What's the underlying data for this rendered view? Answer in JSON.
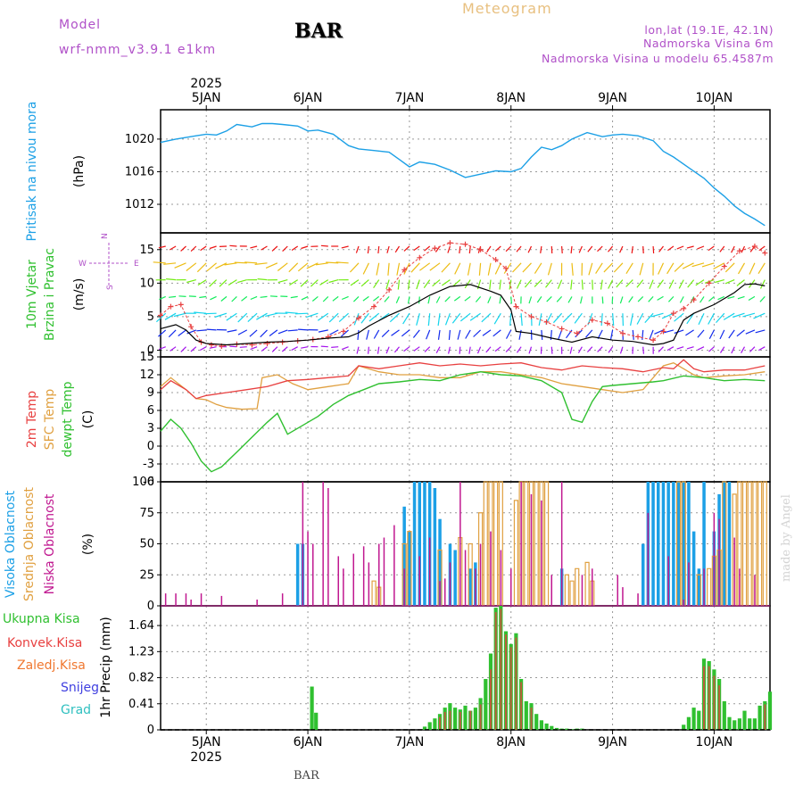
{
  "header": {
    "model_label": "Model",
    "model_name": "wrf-nmm_v3.9.1 e1km",
    "station": "BAR",
    "title": "Meteogram",
    "coords": "lon,lat (19.1E, 42.1N)",
    "elevation": "Nadmorska Visina 6m",
    "model_elevation": "Nadmorska Visina u modelu 65.4587m"
  },
  "footer": {
    "station": "BAR",
    "credit": "made by Angel"
  },
  "colors": {
    "pressure": "#1ca0e6",
    "temp2m": "#e84040",
    "sfc": "#e0a040",
    "dewpt": "#30c030",
    "high_cloud": "#1ca0e6",
    "mid_cloud": "#e0a040",
    "low_cloud": "#c01890",
    "precip_total": "#30c030",
    "precip_conv": "#e84040",
    "wind_speed": "#000000",
    "gust": "#e84040"
  },
  "chart_data": [
    {
      "type": "line",
      "id": "pressure",
      "ylabel_lines": [
        "Pritisak na nivou mora",
        "(hPa)"
      ],
      "ylim": [
        1008.5,
        1023.6
      ],
      "yticks": [
        1012,
        1016,
        1020
      ],
      "x_dates": [
        "5JAN",
        "6JAN",
        "7JAN",
        "8JAN",
        "9JAN",
        "10JAN"
      ],
      "year": "2025",
      "xlim": [
        -0.45,
        5.55
      ],
      "series": [
        {
          "x": [
            -0.45,
            -0.3,
            -0.1,
            0.0,
            0.1,
            0.2,
            0.3,
            0.45,
            0.55,
            0.65,
            0.75,
            0.9,
            1.0,
            1.1,
            1.25,
            1.4,
            1.5,
            1.65,
            1.8,
            1.9,
            2.0,
            2.1,
            2.25,
            2.4,
            2.55,
            2.7,
            2.85,
            3.0,
            3.1,
            3.2,
            3.3,
            3.4,
            3.5,
            3.6,
            3.75,
            3.9,
            4.0,
            4.1,
            4.25,
            4.4,
            4.5,
            4.6,
            4.75,
            4.9,
            5.0,
            5.1,
            5.2,
            5.3,
            5.4,
            5.5
          ],
          "y": [
            1019.6,
            1020.0,
            1020.4,
            1020.6,
            1020.5,
            1021.0,
            1021.8,
            1021.5,
            1021.9,
            1021.9,
            1021.8,
            1021.6,
            1021.0,
            1021.1,
            1020.6,
            1019.2,
            1018.8,
            1018.6,
            1018.4,
            1017.5,
            1016.6,
            1017.2,
            1016.9,
            1016.2,
            1015.3,
            1015.7,
            1016.1,
            1016.0,
            1016.4,
            1017.8,
            1019.0,
            1018.7,
            1019.2,
            1020.0,
            1020.8,
            1020.3,
            1020.5,
            1020.6,
            1020.4,
            1019.8,
            1018.5,
            1017.8,
            1016.5,
            1015.2,
            1014.0,
            1013.0,
            1011.8,
            1010.9,
            1010.2,
            1009.4
          ]
        }
      ]
    },
    {
      "type": "wind",
      "id": "wind",
      "ylabel_lines": [
        "10m Vjetar",
        "Brzina i Pravac",
        "(m/s)"
      ],
      "compass": {
        "north": "N",
        "west": "W",
        "east": "E",
        "south": "S"
      },
      "ylim": [
        -1,
        17.5
      ],
      "yticks": [
        0,
        5,
        10,
        15
      ],
      "xlim": [
        -0.45,
        5.55
      ],
      "series": [
        {
          "name": "wind speed",
          "x": [
            -0.45,
            -0.3,
            -0.2,
            -0.1,
            0.0,
            0.2,
            0.4,
            0.6,
            0.8,
            1.0,
            1.2,
            1.4,
            1.5,
            1.6,
            1.8,
            2.0,
            2.2,
            2.4,
            2.6,
            2.8,
            2.9,
            3.0,
            3.05,
            3.2,
            3.4,
            3.6,
            3.8,
            4.0,
            4.2,
            4.4,
            4.5,
            4.6,
            4.7,
            4.8,
            5.0,
            5.2,
            5.3,
            5.4,
            5.5
          ],
          "y": [
            3.2,
            3.8,
            3.0,
            1.5,
            1.0,
            0.8,
            1.0,
            1.2,
            1.3,
            1.5,
            1.8,
            2.0,
            2.6,
            3.6,
            5.2,
            6.5,
            8.2,
            9.5,
            9.8,
            8.8,
            8.2,
            6.0,
            2.8,
            2.5,
            1.8,
            1.2,
            2.0,
            1.5,
            1.3,
            0.8,
            1.0,
            1.5,
            4.5,
            5.5,
            6.8,
            8.6,
            9.8,
            9.9,
            9.6
          ]
        },
        {
          "name": "gust",
          "x": [
            -0.45,
            -0.35,
            -0.25,
            -0.15,
            -0.05,
            0.05,
            0.15,
            0.3,
            0.45,
            0.6,
            0.75,
            0.9,
            1.05,
            1.2,
            1.35,
            1.5,
            1.65,
            1.8,
            1.95,
            2.1,
            2.25,
            2.4,
            2.55,
            2.7,
            2.85,
            2.95,
            3.05,
            3.2,
            3.35,
            3.5,
            3.65,
            3.8,
            3.95,
            4.1,
            4.25,
            4.4,
            4.5,
            4.6,
            4.7,
            4.8,
            4.95,
            5.1,
            5.25,
            5.4,
            5.5
          ],
          "y": [
            5.2,
            6.5,
            6.8,
            3.5,
            1.2,
            0.8,
            0.6,
            0.9,
            0.8,
            1.0,
            1.2,
            1.4,
            1.6,
            2.0,
            2.8,
            4.8,
            6.5,
            9.0,
            12.0,
            13.8,
            15.2,
            16.0,
            15.8,
            15.0,
            13.5,
            12.2,
            6.5,
            5.0,
            4.2,
            3.2,
            2.5,
            4.5,
            4.0,
            2.5,
            2.0,
            1.5,
            2.8,
            5.5,
            6.2,
            7.5,
            10.0,
            12.5,
            14.8,
            15.5,
            14.5
          ]
        }
      ]
    },
    {
      "type": "line",
      "id": "temperature",
      "ylabel_lines": [
        "2m Temp",
        "SFC Temp",
        "dewpt Temp",
        "(C)"
      ],
      "ylim": [
        -6,
        15
      ],
      "yticks": [
        -6,
        -3,
        0,
        3,
        6,
        9,
        12,
        15
      ],
      "xlim": [
        -0.45,
        5.55
      ],
      "series": [
        {
          "name": "2m Temp",
          "x": [
            -0.45,
            -0.35,
            -0.2,
            -0.1,
            0.0,
            0.2,
            0.4,
            0.6,
            0.8,
            1.0,
            1.2,
            1.4,
            1.5,
            1.7,
            1.9,
            2.1,
            2.3,
            2.5,
            2.7,
            2.9,
            3.1,
            3.3,
            3.5,
            3.7,
            3.9,
            4.1,
            4.3,
            4.5,
            4.6,
            4.7,
            4.8,
            4.9,
            5.1,
            5.3,
            5.5
          ],
          "y": [
            9.5,
            11.0,
            9.5,
            8.0,
            8.5,
            9.0,
            9.5,
            10.0,
            11.0,
            11.2,
            11.5,
            11.8,
            13.5,
            13.0,
            13.5,
            14.0,
            13.5,
            13.8,
            13.5,
            13.8,
            14.0,
            13.2,
            12.8,
            13.5,
            13.2,
            13.0,
            12.5,
            13.2,
            13.0,
            14.5,
            13.0,
            12.5,
            12.8,
            12.8,
            13.5
          ]
        },
        {
          "name": "SFC Temp",
          "x": [
            -0.45,
            -0.35,
            -0.2,
            -0.1,
            0.0,
            0.1,
            0.2,
            0.35,
            0.5,
            0.55,
            0.7,
            0.85,
            1.0,
            1.2,
            1.4,
            1.5,
            1.7,
            1.9,
            2.1,
            2.3,
            2.5,
            2.7,
            2.9,
            3.1,
            3.3,
            3.5,
            3.7,
            3.9,
            4.1,
            4.3,
            4.5,
            4.6,
            4.7,
            4.8,
            4.9,
            5.1,
            5.3,
            5.5
          ],
          "y": [
            10.0,
            11.5,
            9.5,
            8.0,
            7.8,
            7.0,
            6.5,
            6.2,
            6.3,
            11.5,
            12.0,
            10.5,
            9.5,
            10.0,
            10.5,
            13.5,
            12.5,
            12.0,
            12.0,
            11.5,
            11.5,
            12.5,
            12.5,
            12.0,
            11.5,
            10.5,
            10.0,
            9.5,
            9.0,
            9.5,
            13.5,
            14.0,
            13.0,
            12.0,
            11.5,
            11.8,
            12.0,
            12.5
          ]
        },
        {
          "name": "dewpt Temp",
          "x": [
            -0.45,
            -0.35,
            -0.25,
            -0.15,
            -0.05,
            0.05,
            0.15,
            0.3,
            0.45,
            0.6,
            0.7,
            0.8,
            0.95,
            1.1,
            1.25,
            1.4,
            1.55,
            1.7,
            1.9,
            2.1,
            2.3,
            2.5,
            2.7,
            2.9,
            3.1,
            3.3,
            3.5,
            3.6,
            3.7,
            3.8,
            3.9,
            4.0,
            4.2,
            4.4,
            4.5,
            4.7,
            4.9,
            5.1,
            5.3,
            5.5
          ],
          "y": [
            2.5,
            4.5,
            3.0,
            0.5,
            -2.5,
            -4.3,
            -3.5,
            -1.0,
            1.5,
            4.0,
            5.5,
            2.0,
            3.5,
            5.0,
            7.0,
            8.5,
            9.5,
            10.5,
            10.8,
            11.2,
            11.0,
            12.0,
            12.5,
            12.0,
            11.8,
            11.0,
            9.0,
            4.5,
            4.0,
            7.5,
            10.0,
            10.2,
            10.5,
            10.8,
            11.0,
            11.8,
            11.5,
            11.0,
            11.2,
            11.0
          ]
        }
      ]
    },
    {
      "type": "bar",
      "id": "clouds",
      "ylabel_lines": [
        "Visoka Oblacnost",
        "Srednja Oblacnost",
        "Niska Oblacnost",
        "(%)"
      ],
      "ylim": [
        0,
        100
      ],
      "yticks": [
        0,
        25,
        50,
        75,
        100
      ],
      "xlim": [
        -0.45,
        5.55
      ],
      "series": [
        {
          "name": "Visoka Oblacnost",
          "x": [
            0.9,
            0.95,
            1.95,
            2.0,
            2.05,
            2.1,
            2.15,
            2.2,
            2.25,
            2.3,
            2.4,
            2.45,
            2.6,
            2.65,
            3.5,
            4.3,
            4.35,
            4.4,
            4.45,
            4.5,
            4.55,
            4.6,
            4.65,
            4.7,
            4.75,
            4.8,
            4.85,
            4.9,
            5.0,
            5.05,
            5.1,
            5.15
          ],
          "y": [
            50,
            50,
            80,
            60,
            100,
            100,
            100,
            100,
            95,
            70,
            50,
            45,
            30,
            35,
            30,
            50,
            100,
            100,
            100,
            100,
            100,
            100,
            100,
            100,
            100,
            60,
            30,
            100,
            60,
            90,
            100,
            100
          ]
        },
        {
          "name": "Srednja Oblacnost",
          "x": [
            1.65,
            1.7,
            1.95,
            2.0,
            2.3,
            2.5,
            2.6,
            2.7,
            2.75,
            2.8,
            2.85,
            2.9,
            3.05,
            3.1,
            3.15,
            3.2,
            3.25,
            3.3,
            3.35,
            3.55,
            3.6,
            3.65,
            3.75,
            3.8,
            4.65,
            4.7,
            4.85,
            4.95,
            5.0,
            5.05,
            5.1,
            5.2,
            5.25,
            5.3,
            5.35,
            5.4,
            5.45,
            5.5
          ],
          "y": [
            20,
            15,
            50,
            60,
            45,
            55,
            50,
            75,
            100,
            100,
            100,
            100,
            85,
            100,
            100,
            100,
            100,
            100,
            100,
            25,
            20,
            30,
            35,
            20,
            100,
            100,
            25,
            30,
            40,
            45,
            100,
            90,
            100,
            100,
            100,
            100,
            100,
            100
          ]
        },
        {
          "name": "Niska Oblacnost",
          "x": [
            -0.4,
            -0.3,
            -0.2,
            -0.15,
            -0.05,
            0.15,
            0.5,
            0.75,
            0.95,
            1.0,
            1.05,
            1.15,
            1.2,
            1.3,
            1.35,
            1.45,
            1.55,
            1.6,
            1.7,
            1.75,
            1.85,
            1.95,
            2.1,
            2.2,
            2.3,
            2.35,
            2.4,
            2.5,
            2.55,
            2.65,
            2.7,
            2.8,
            2.9,
            3.0,
            3.1,
            3.2,
            3.3,
            3.4,
            3.5,
            3.7,
            3.8,
            4.05,
            4.1,
            4.25,
            4.35,
            4.55,
            4.7,
            4.75,
            4.9,
            5.0,
            5.05,
            5.2,
            5.25,
            5.4
          ],
          "y": [
            10,
            10,
            10,
            5,
            10,
            8,
            5,
            10,
            100,
            60,
            50,
            100,
            95,
            40,
            30,
            42,
            48,
            35,
            50,
            55,
            65,
            30,
            40,
            55,
            20,
            22,
            35,
            100,
            45,
            30,
            50,
            60,
            45,
            30,
            100,
            90,
            85,
            25,
            100,
            25,
            30,
            25,
            15,
            10,
            75,
            40,
            5,
            35,
            30,
            75,
            70,
            55,
            30,
            25
          ]
        }
      ]
    },
    {
      "type": "bar",
      "id": "precip",
      "ylabel_lines": [
        "1hr Precip (mm)"
      ],
      "legend": [
        "Ukupna Kisa",
        "Konvek.Kisa",
        "Zaledj.Kisa",
        "Snijeg",
        "Grad"
      ],
      "ylim": [
        0,
        1.95
      ],
      "yticks": [
        0,
        0.41,
        0.82,
        1.23,
        1.64
      ],
      "xlim": [
        -0.45,
        5.55
      ],
      "series": [
        {
          "name": "Ukupna Kisa",
          "x": [
            1.04,
            1.08,
            2.15,
            2.2,
            2.25,
            2.3,
            2.35,
            2.4,
            2.45,
            2.5,
            2.55,
            2.6,
            2.65,
            2.7,
            2.75,
            2.8,
            2.85,
            2.9,
            2.95,
            3.0,
            3.05,
            3.1,
            3.15,
            3.2,
            3.25,
            3.3,
            3.35,
            3.4,
            3.45,
            3.5,
            3.55,
            3.6,
            3.65,
            3.7,
            4.7,
            4.75,
            4.8,
            4.85,
            4.9,
            4.95,
            5.0,
            5.05,
            5.1,
            5.15,
            5.2,
            5.25,
            5.3,
            5.35,
            5.4,
            5.45,
            5.5,
            5.55
          ],
          "y": [
            0.68,
            0.27,
            0.05,
            0.12,
            0.18,
            0.25,
            0.35,
            0.42,
            0.35,
            0.32,
            0.38,
            0.3,
            0.35,
            0.5,
            0.8,
            1.2,
            1.92,
            1.95,
            1.55,
            1.35,
            1.52,
            0.8,
            0.45,
            0.42,
            0.25,
            0.15,
            0.1,
            0.06,
            0.03,
            0.02,
            0.02,
            0.01,
            0.02,
            0.02,
            0.08,
            0.2,
            0.35,
            0.3,
            1.12,
            1.08,
            0.95,
            0.8,
            0.45,
            0.2,
            0.15,
            0.18,
            0.3,
            0.18,
            0.18,
            0.38,
            0.45,
            0.6
          ]
        },
        {
          "name": "Konvek.Kisa",
          "x": [
            2.3,
            2.35,
            2.4,
            2.5,
            2.6,
            2.7,
            2.8,
            2.85,
            2.9,
            2.95,
            3.0,
            3.05,
            3.1,
            3.2,
            4.9,
            4.95,
            5.0,
            5.05,
            5.5
          ],
          "y": [
            0.2,
            0.28,
            0.3,
            0.28,
            0.3,
            0.4,
            0.95,
            1.85,
            1.9,
            1.5,
            1.3,
            1.45,
            0.75,
            0.35,
            1.0,
            1.0,
            0.85,
            0.7,
            0.4
          ]
        }
      ]
    }
  ]
}
